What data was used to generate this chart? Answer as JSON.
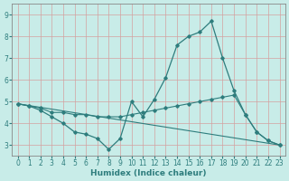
{
  "title": "",
  "xlabel": "Humidex (Indice chaleur)",
  "ylabel": "",
  "background_color": "#c8ece8",
  "grid_color": "#d4a0a0",
  "line_color": "#2e7d7d",
  "spine_color": "#888888",
  "xlim": [
    -0.5,
    23.5
  ],
  "ylim": [
    2.5,
    9.5
  ],
  "xticks": [
    0,
    1,
    2,
    3,
    4,
    5,
    6,
    7,
    8,
    9,
    10,
    11,
    12,
    13,
    14,
    15,
    16,
    17,
    18,
    19,
    20,
    21,
    22,
    23
  ],
  "yticks": [
    3,
    4,
    5,
    6,
    7,
    8,
    9
  ],
  "series1_x": [
    0,
    1,
    2,
    3,
    4,
    5,
    6,
    7,
    8,
    9,
    10,
    11,
    12,
    13,
    14,
    15,
    16,
    17,
    18,
    19,
    20,
    21,
    22,
    23
  ],
  "series1_y": [
    4.9,
    4.8,
    4.6,
    4.3,
    4.0,
    3.6,
    3.5,
    3.3,
    2.8,
    3.3,
    5.0,
    4.3,
    5.1,
    6.1,
    7.6,
    8.0,
    8.2,
    8.7,
    7.0,
    5.5,
    4.4,
    3.6,
    3.2,
    3.0
  ],
  "series2_x": [
    0,
    1,
    2,
    3,
    4,
    5,
    6,
    7,
    8,
    9,
    10,
    11,
    12,
    13,
    14,
    15,
    16,
    17,
    18,
    19,
    20,
    21,
    22,
    23
  ],
  "series2_y": [
    4.9,
    4.8,
    4.7,
    4.5,
    4.5,
    4.4,
    4.4,
    4.3,
    4.3,
    4.3,
    4.4,
    4.5,
    4.6,
    4.7,
    4.8,
    4.9,
    5.0,
    5.1,
    5.2,
    5.3,
    4.4,
    3.6,
    3.2,
    3.0
  ],
  "series3_x": [
    0,
    23
  ],
  "series3_y": [
    4.9,
    3.0
  ],
  "tick_fontsize": 5.5,
  "xlabel_fontsize": 6.5
}
